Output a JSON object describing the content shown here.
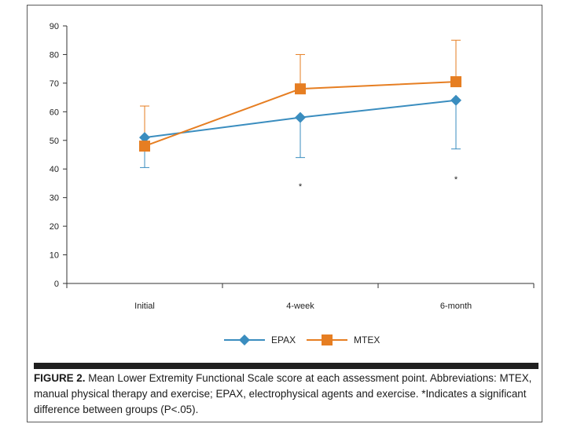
{
  "chart_data": {
    "type": "line",
    "categories": [
      "Initial",
      "4-week",
      "6-month"
    ],
    "ylim": [
      0,
      90
    ],
    "yticks": [
      0,
      10,
      20,
      30,
      40,
      50,
      60,
      70,
      80,
      90
    ],
    "grid": false,
    "legend_position": "bottom-center",
    "series": [
      {
        "name": "EPAX",
        "color": "#3a8dbf",
        "marker": "diamond",
        "values": [
          51,
          58,
          64
        ],
        "error_low": [
          40.5,
          44,
          47
        ]
      },
      {
        "name": "MTEX",
        "color": "#e67e22",
        "marker": "square",
        "values": [
          48,
          68,
          70.5
        ],
        "error_high": [
          62,
          80,
          85
        ]
      }
    ],
    "annotations": [
      {
        "category": "4-week",
        "text": "*",
        "y": 34
      },
      {
        "category": "6-month",
        "text": "*",
        "y": 36.5
      }
    ]
  },
  "caption": {
    "label": "FIGURE 2.",
    "text": " Mean Lower Extremity Functional Scale score at each assessment point. Abbreviations: MTEX, manual physical therapy and exercise; EPAX, electrophysical agents and exercise. *Indicates a significant difference between groups (P<.05)."
  }
}
